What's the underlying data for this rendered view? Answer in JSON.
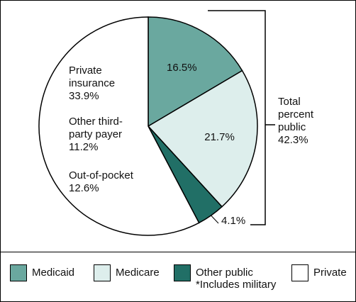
{
  "chart_data": {
    "type": "pie",
    "slices": [
      {
        "key": "medicaid",
        "label": "16.5%",
        "value": 16.5,
        "color": "#6aa89f"
      },
      {
        "key": "medicare",
        "label": "21.7%",
        "value": 21.7,
        "color": "#ddeeec"
      },
      {
        "key": "other_public",
        "label": "4.1%",
        "value": 4.1,
        "color": "#216f66"
      },
      {
        "key": "private",
        "label": "",
        "value": 57.7,
        "color": "#ffffff"
      }
    ],
    "private_breakdown": [
      {
        "line1": "Private",
        "line2": "insurance",
        "value_label": "33.9%",
        "value": 33.9
      },
      {
        "line1": "Other third-",
        "line2": "party payer",
        "value_label": "11.2%",
        "value": 11.2
      },
      {
        "line1": "Out-of-pocket",
        "line2": "",
        "value_label": "12.6%",
        "value": 12.6
      }
    ],
    "bracket": {
      "line1": "Total",
      "line2": "percent",
      "line3": "public",
      "line4": "42.3%",
      "value": 42.3
    },
    "legend": {
      "placement": "bottom",
      "items": [
        {
          "key": "medicaid",
          "label": "Medicaid",
          "note": "",
          "color": "#6aa89f"
        },
        {
          "key": "medicare",
          "label": "Medicare",
          "note": "",
          "color": "#ddeeec"
        },
        {
          "key": "other_public",
          "label": "Other public",
          "note": "*Includes military",
          "color": "#216f66"
        },
        {
          "key": "private",
          "label": "Private",
          "note": "",
          "color": "#ffffff"
        }
      ]
    }
  }
}
